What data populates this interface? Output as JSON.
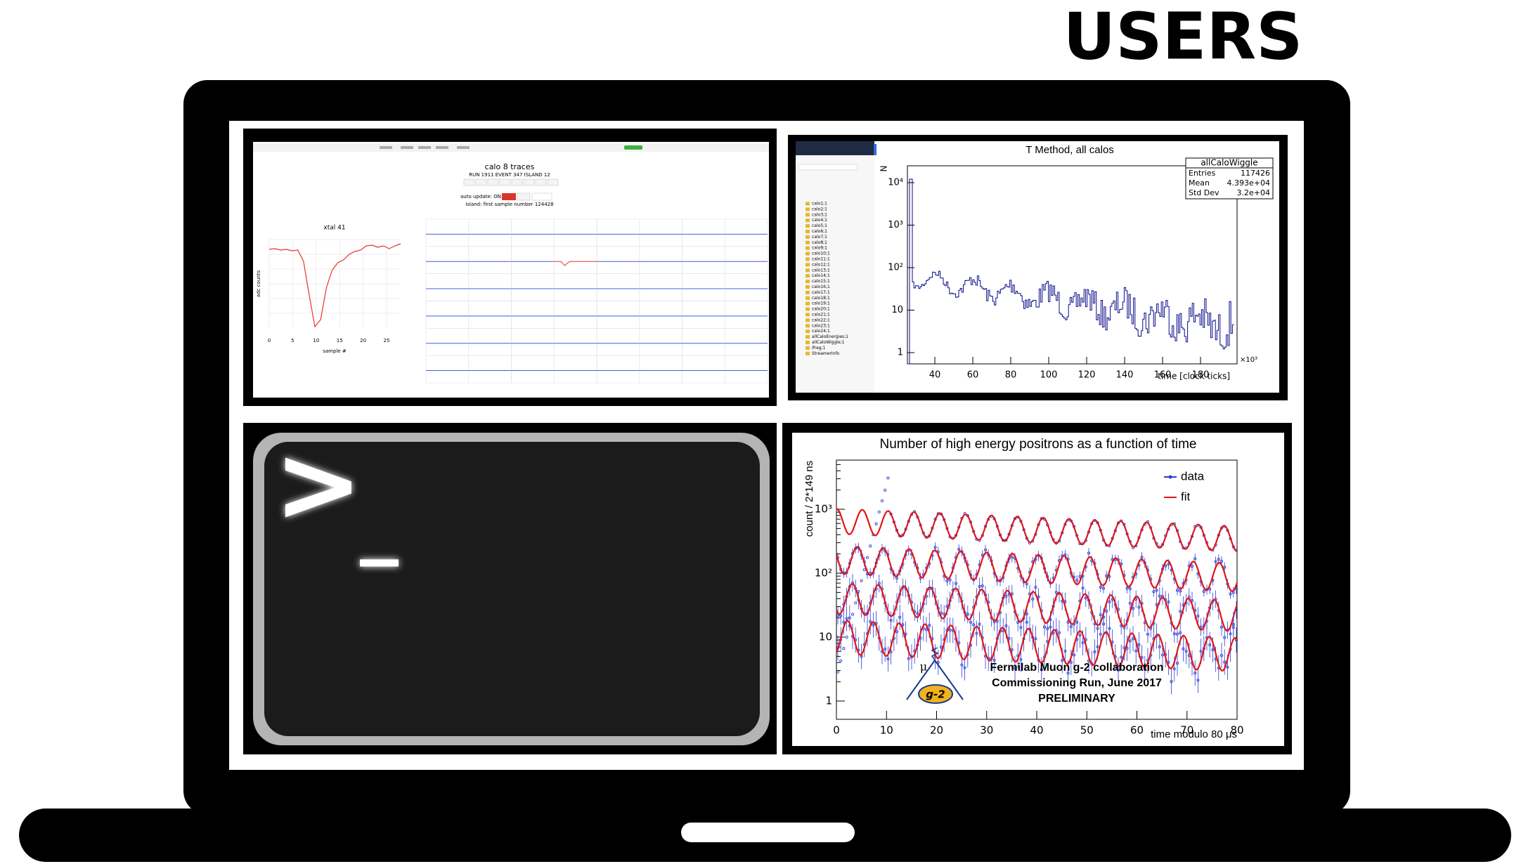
{
  "header": {
    "title": "USERS"
  },
  "panels": {
    "traces": {
      "title": "calo 8 traces",
      "subtitle": "RUN 1911 EVENT 347 ISLAND 12",
      "auto_update": "auto update: ON",
      "island_note": "island: first sample number 124428",
      "plot_title": "xtal 41",
      "y_label": "adc counts",
      "x_label": "sample #",
      "x_ticks": [
        "0",
        "5",
        "10",
        "15",
        "20",
        "25"
      ]
    },
    "histogram": {
      "title": "T Method, all calos",
      "y_label": "N",
      "x_label": "time [clock ticks]",
      "x_exponent": "×10³",
      "x_ticks": [
        "40",
        "60",
        "80",
        "100",
        "120",
        "140",
        "160",
        "180"
      ],
      "y_ticks": [
        "10⁴",
        "10³",
        "10²",
        "10",
        "1"
      ],
      "stats": {
        "name": "allCaloWiggle",
        "rows": [
          [
            "Entries",
            "117426"
          ],
          [
            "Mean",
            "4.393e+04"
          ],
          [
            "Std Dev",
            "3.2e+04"
          ]
        ]
      },
      "browser": [
        "calo1;1",
        "calo2;1",
        "calo3;1",
        "calo4;1",
        "calo5;1",
        "calo6;1",
        "calo7;1",
        "calo8;1",
        "calo9;1",
        "calo10;1",
        "calo11;1",
        "calo12;1",
        "calo13;1",
        "calo14;1",
        "calo15;1",
        "calo16;1",
        "calo17;1",
        "calo18;1",
        "calo19;1",
        "calo20;1",
        "calo21;1",
        "calo22;1",
        "calo23;1",
        "calo24;1",
        "allCaloEnergies;1",
        "allCaloWiggle;1",
        "ifreg;1",
        "StreamerInfo"
      ]
    },
    "terminal": {
      "prompt": ">",
      "cursor": "_"
    },
    "wiggle": {
      "title": "Number of high energy positrons as a function of time",
      "y_label": "count / 2*149 ns",
      "x_label": "time modulo 80 μs",
      "legend": [
        "data",
        "fit"
      ],
      "x_ticks": [
        "0",
        "10",
        "20",
        "30",
        "40",
        "50",
        "60",
        "70",
        "80"
      ],
      "y_ticks": [
        "10³",
        "10²",
        "10",
        "1"
      ],
      "notes": [
        "Fermilab Muon g-2 collaboration",
        "Commissioning Run, June 2017",
        "PRELIMINARY"
      ],
      "logo": {
        "symbol": "μ",
        "name": "g-2"
      }
    }
  }
}
